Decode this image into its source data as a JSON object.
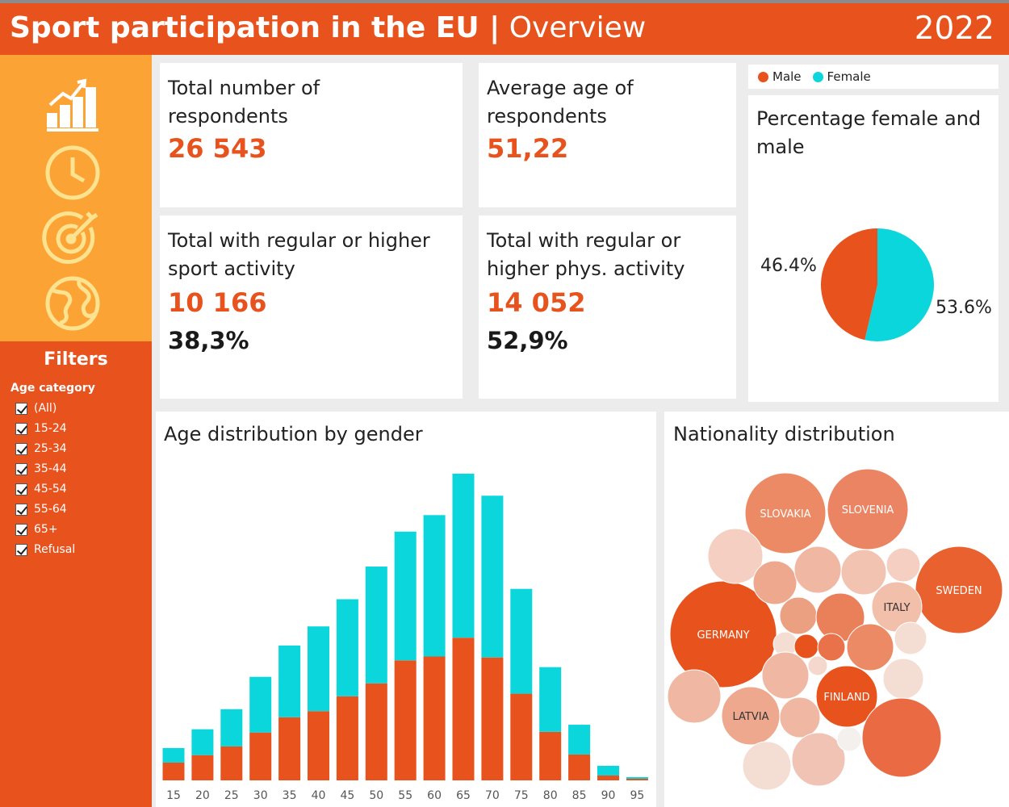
{
  "header": {
    "title_bold": "Sport participation in the EU |",
    "title_light": " Overview",
    "year": "2022"
  },
  "nav": {
    "icons": [
      "chart-growth-icon",
      "clock-icon",
      "target-icon",
      "globe-icon"
    ]
  },
  "filters": {
    "title": "Filters",
    "label": "Age category",
    "items": [
      "(All)",
      "15-24",
      "25-34",
      "35-44",
      "45-54",
      "55-64",
      "65+",
      "Refusal"
    ]
  },
  "kpis": {
    "respondents": {
      "label": "Total number of respondents",
      "value": "26 543"
    },
    "avg_age": {
      "label": "Average age of respondents",
      "value": "51,22"
    },
    "sport": {
      "label": "Total with regular or higher sport activity",
      "value": "10 166",
      "pct": "38,3%"
    },
    "phys": {
      "label": "Total with regular or higher phys. activity",
      "value": "14 052",
      "pct": "52,9%"
    }
  },
  "legend": {
    "male": "Male",
    "female": "Female"
  },
  "colors": {
    "male": "#e8521d",
    "female": "#0bd6dc",
    "accent": "#fca336"
  },
  "gender_chart": {
    "title": "Percentage female and male"
  },
  "age_chart": {
    "title": "Age distribution by gender"
  },
  "nationality_chart": {
    "title": "Nationality distribution"
  },
  "chart_data": [
    {
      "type": "pie",
      "title": "Percentage female and male",
      "categories": [
        "Male",
        "Female"
      ],
      "values": [
        46.4,
        53.6
      ],
      "labels": [
        "46.4%",
        "53.6%"
      ]
    },
    {
      "type": "bar",
      "stacked": true,
      "title": "Age distribution by gender",
      "categories": [
        "15",
        "20",
        "25",
        "30",
        "35",
        "40",
        "45",
        "50",
        "55",
        "60",
        "65",
        "70",
        "75",
        "80",
        "85",
        "90",
        "95"
      ],
      "series": [
        {
          "name": "Male",
          "values": [
            55,
            78,
            105,
            148,
            195,
            214,
            260,
            300,
            371,
            383,
            441,
            380,
            268,
            150,
            80,
            15,
            5
          ]
        },
        {
          "name": "Female",
          "values": [
            45,
            80,
            115,
            172,
            222,
            262,
            300,
            361,
            398,
            437,
            507,
            500,
            324,
            200,
            92,
            30,
            5
          ]
        }
      ]
    },
    {
      "type": "bubble",
      "title": "Nationality distribution",
      "labels": [
        "SLOVAKIA",
        "SLOVENIA",
        "SWEDEN",
        "GERMANY",
        "ITALY",
        "FINLAND",
        "LATVIA"
      ]
    }
  ]
}
